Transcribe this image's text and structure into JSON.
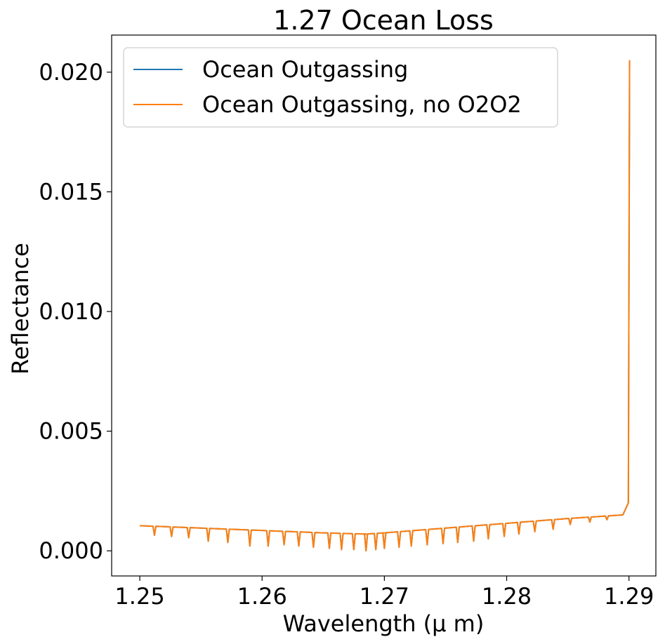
{
  "chart_data": {
    "type": "line",
    "title": "1.27 Ocean Loss",
    "xlabel": "Wavelength (μ m)",
    "ylabel": "Reflectance",
    "xlim": [
      1.2477,
      1.2922
    ],
    "ylim": [
      -0.00105,
      0.02155
    ],
    "xticks": [
      1.25,
      1.26,
      1.27,
      1.28,
      1.29
    ],
    "xtick_labels": [
      "1.25",
      "1.26",
      "1.27",
      "1.28",
      "1.29"
    ],
    "yticks": [
      0.0,
      0.005,
      0.01,
      0.015,
      0.02
    ],
    "ytick_labels": [
      "0.000",
      "0.005",
      "0.010",
      "0.015",
      "0.020"
    ],
    "grid": false,
    "legend": "upper-left",
    "series": [
      {
        "name": "Ocean Outgassing",
        "color": "#1f77b4",
        "continuum": [
          [
            1.25,
            0.00105
          ],
          [
            1.255,
            0.00095
          ],
          [
            1.26,
            0.00085
          ],
          [
            1.265,
            0.00075
          ],
          [
            1.2685,
            0.0007
          ],
          [
            1.27,
            0.00075
          ],
          [
            1.275,
            0.00095
          ],
          [
            1.28,
            0.00115
          ],
          [
            1.285,
            0.00135
          ],
          [
            1.2895,
            0.0015
          ],
          [
            1.28995,
            0.002
          ],
          [
            1.29005,
            0.0205
          ]
        ],
        "absorption_lines": [
          [
            1.2512,
            0.00065
          ],
          [
            1.2526,
            0.0006
          ],
          [
            1.254,
            0.00055
          ],
          [
            1.2556,
            0.0004
          ],
          [
            1.2572,
            0.00035
          ],
          [
            1.259,
            0.0002
          ],
          [
            1.2605,
            0.0002
          ],
          [
            1.2618,
            0.00025
          ],
          [
            1.263,
            0.0002
          ],
          [
            1.2642,
            0.00015
          ],
          [
            1.2655,
            0.0001
          ],
          [
            1.2665,
            5e-05
          ],
          [
            1.2675,
            5e-05
          ],
          [
            1.2685,
            0.0
          ],
          [
            1.2693,
            5e-05
          ],
          [
            1.27,
            0.0001
          ],
          [
            1.2712,
            0.00015
          ],
          [
            1.2722,
            0.0002
          ],
          [
            1.2735,
            0.00025
          ],
          [
            1.2748,
            0.0003
          ],
          [
            1.276,
            0.00035
          ],
          [
            1.2773,
            0.0004
          ],
          [
            1.2785,
            0.0005
          ],
          [
            1.2798,
            0.0006
          ],
          [
            1.281,
            0.0007
          ],
          [
            1.2823,
            0.0008
          ],
          [
            1.2838,
            0.0009
          ],
          [
            1.2852,
            0.0011
          ],
          [
            1.2868,
            0.0012
          ],
          [
            1.2882,
            0.0013
          ]
        ]
      },
      {
        "name": "Ocean Outgassing, no O2O2",
        "color": "#ff7f0e",
        "continuum": [
          [
            1.25,
            0.00105
          ],
          [
            1.255,
            0.00095
          ],
          [
            1.26,
            0.00085
          ],
          [
            1.265,
            0.00075
          ],
          [
            1.2685,
            0.0007
          ],
          [
            1.27,
            0.00075
          ],
          [
            1.275,
            0.00095
          ],
          [
            1.28,
            0.00115
          ],
          [
            1.285,
            0.00135
          ],
          [
            1.2895,
            0.0015
          ],
          [
            1.28995,
            0.002
          ],
          [
            1.29005,
            0.0205
          ]
        ],
        "absorption_lines": [
          [
            1.2512,
            0.00065
          ],
          [
            1.2526,
            0.0006
          ],
          [
            1.254,
            0.00055
          ],
          [
            1.2556,
            0.0004
          ],
          [
            1.2572,
            0.00035
          ],
          [
            1.259,
            0.0002
          ],
          [
            1.2605,
            0.0002
          ],
          [
            1.2618,
            0.00025
          ],
          [
            1.263,
            0.0002
          ],
          [
            1.2642,
            0.00015
          ],
          [
            1.2655,
            0.0001
          ],
          [
            1.2665,
            5e-05
          ],
          [
            1.2675,
            5e-05
          ],
          [
            1.2685,
            0.0
          ],
          [
            1.2693,
            5e-05
          ],
          [
            1.27,
            0.0001
          ],
          [
            1.2712,
            0.00015
          ],
          [
            1.2722,
            0.0002
          ],
          [
            1.2735,
            0.00025
          ],
          [
            1.2748,
            0.0003
          ],
          [
            1.276,
            0.00035
          ],
          [
            1.2773,
            0.0004
          ],
          [
            1.2785,
            0.0005
          ],
          [
            1.2798,
            0.0006
          ],
          [
            1.281,
            0.0007
          ],
          [
            1.2823,
            0.0008
          ],
          [
            1.2838,
            0.0009
          ],
          [
            1.2852,
            0.0011
          ],
          [
            1.2868,
            0.0012
          ],
          [
            1.2882,
            0.0013
          ]
        ]
      }
    ]
  }
}
